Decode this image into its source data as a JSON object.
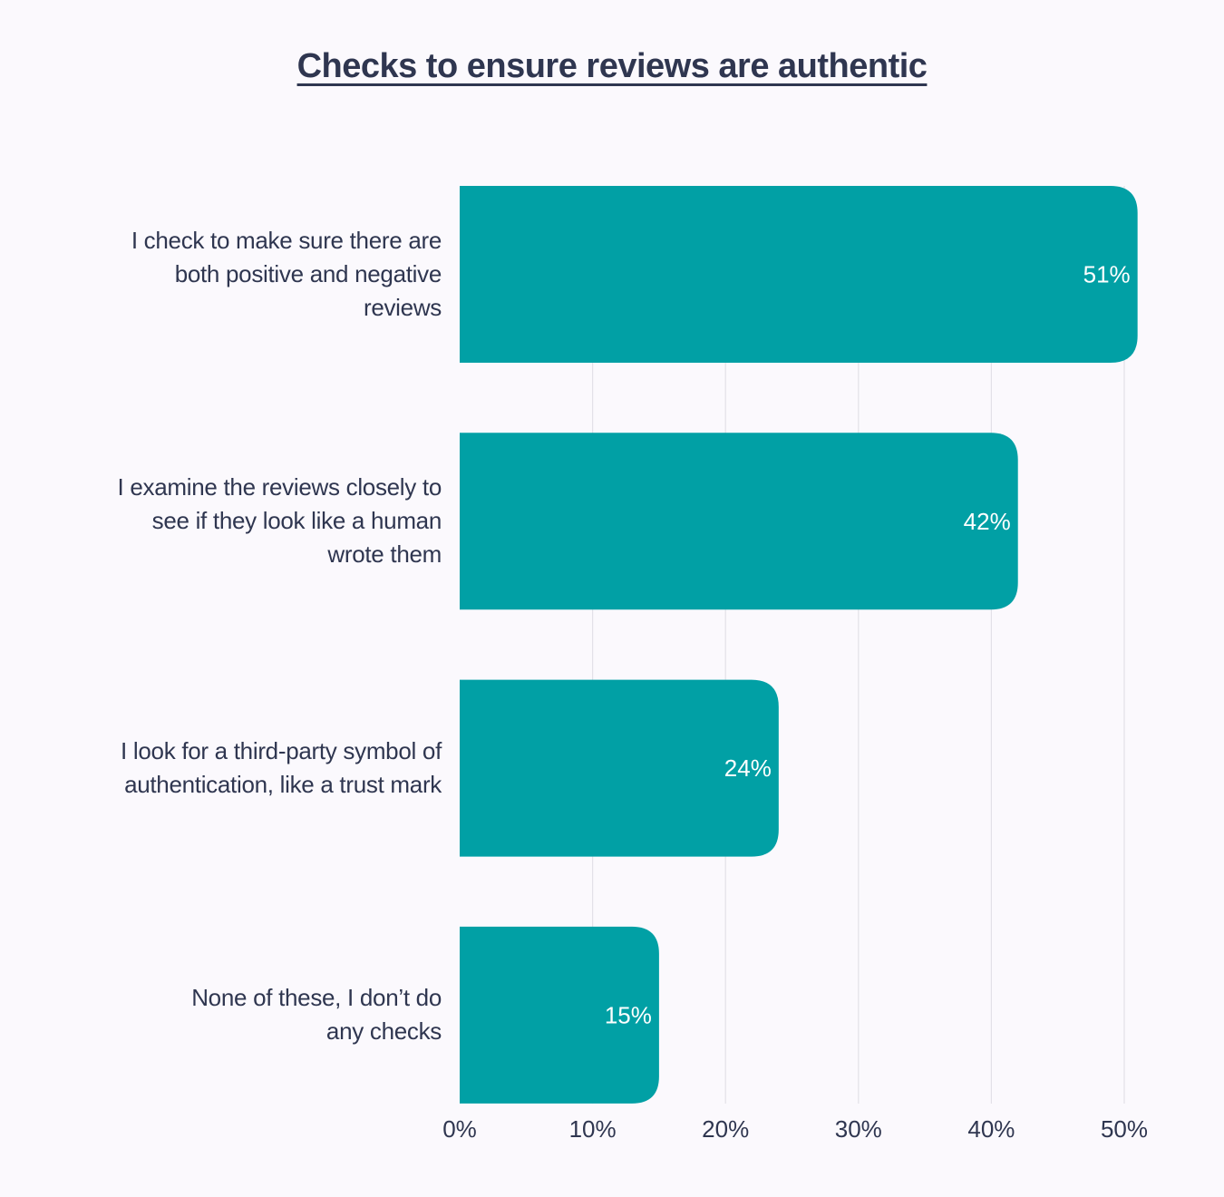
{
  "chart_data": {
    "type": "bar",
    "orientation": "horizontal",
    "title": "Checks to ensure reviews are authentic",
    "categories": [
      "I check to make sure there are both positive and negative reviews",
      "I examine the reviews closely to see if they look like a human wrote them",
      "I look for a third-party symbol of authentication, like a trust mark",
      "None of these, I don’t do any checks"
    ],
    "category_lines": [
      [
        "I check to make sure there are",
        "both positive and negative",
        "reviews"
      ],
      [
        "I examine the reviews closely to",
        "see if they look like a human",
        "wrote them"
      ],
      [
        "I look for a third-party symbol of",
        "authentication, like a trust mark"
      ],
      [
        "None of these, I don’t do",
        "any checks"
      ]
    ],
    "values": [
      51,
      42,
      24,
      15
    ],
    "data_labels": [
      "51%",
      "42%",
      "24%",
      "15%"
    ],
    "xlim": [
      0,
      50
    ],
    "xticks": [
      0,
      10,
      20,
      30,
      40,
      50
    ],
    "xtick_labels": [
      "0%",
      "10%",
      "20%",
      "30%",
      "40%",
      "50%"
    ],
    "xlabel": "",
    "ylabel": "",
    "grid": "vertical",
    "legend": "none",
    "colors": {
      "bar": "#01a0a5",
      "grid": "#e3e1e8",
      "text": "#2f3650",
      "data_label": "#ffffff",
      "background": "#fbf9fd"
    }
  }
}
